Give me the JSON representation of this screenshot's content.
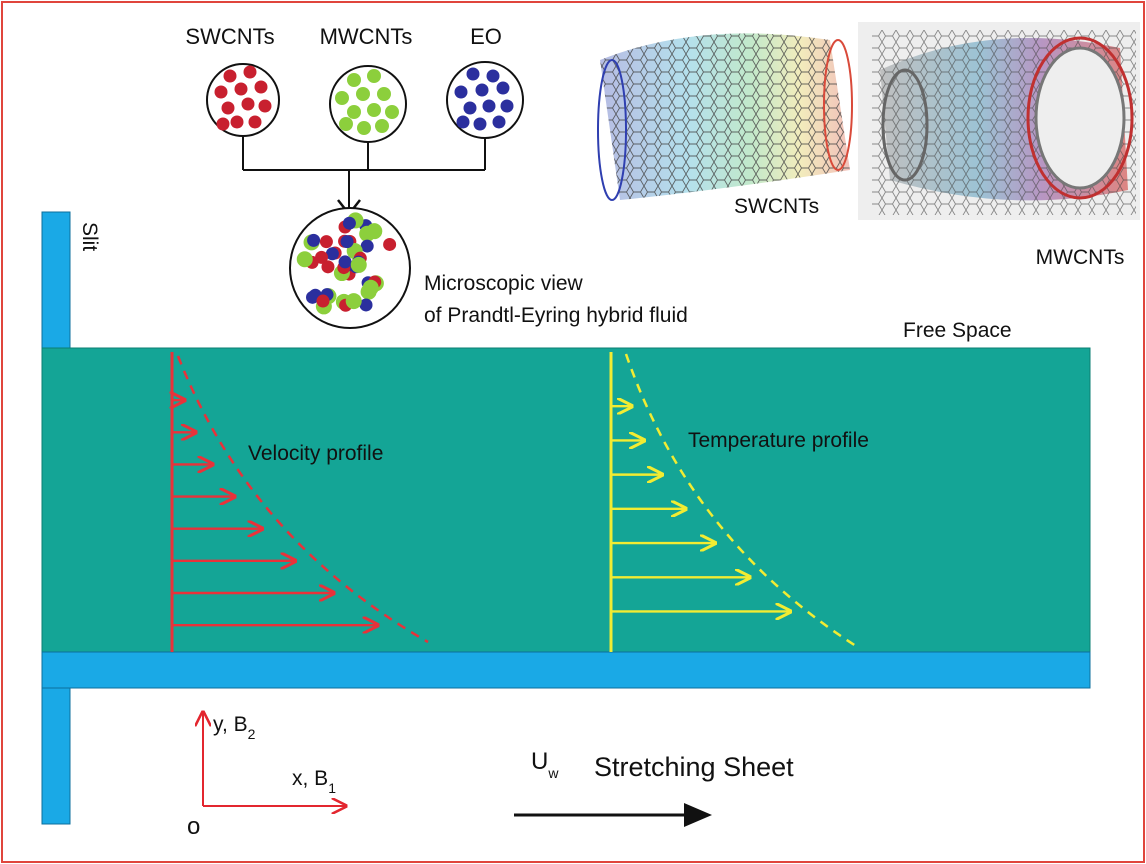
{
  "labels": {
    "swcnts_particle": "SWCNTs",
    "mwcnts_particle": "MWCNTs",
    "eo_particle": "EO",
    "microscopic_line1": "Microscopic view",
    "microscopic_line2": "of  Prandtl-Eyring hybrid fluid",
    "swcnts_tube": "SWCNTs",
    "mwcnts_tube": "MWCNTs",
    "slit": "Slit",
    "free_space": "Free Space",
    "velocity_profile": "Velocity profile",
    "temperature_profile": "Temperature profile",
    "y_axis_main": "y, B",
    "y_axis_sub": "2",
    "x_axis_main": "x, B",
    "x_axis_sub": "1",
    "origin": "o",
    "uw_main": "U",
    "uw_sub": "w",
    "stretching_sheet": "Stretching Sheet"
  },
  "colors": {
    "frame": "#e0453c",
    "fluid": "#14a596",
    "sheet": "#1aa9e6",
    "swcnt_particle": "#c8202f",
    "mwcnt_particle": "#8ccf3c",
    "eo_particle": "#2b2f9e",
    "velocity": "#e8323a",
    "temperature": "#f2ec32",
    "axis": "#e3262f"
  },
  "velocity_arrow_count": 8,
  "temperature_arrow_count": 7
}
